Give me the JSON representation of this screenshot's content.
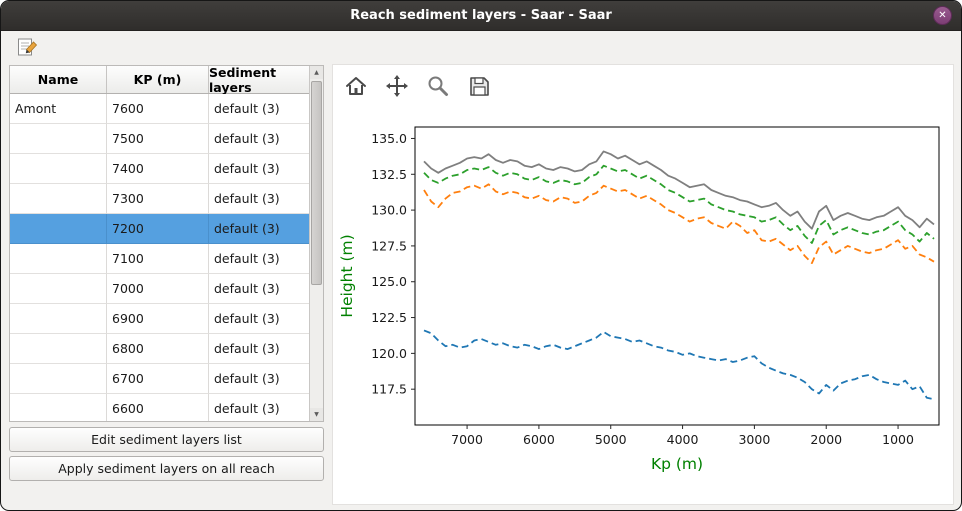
{
  "window": {
    "title": "Reach sediment layers - Saar - Saar"
  },
  "icons": {
    "close": "✕",
    "scroll_up": "▲",
    "scroll_down": "▼"
  },
  "table": {
    "columns": [
      "Name",
      "KP (m)",
      "Sediment layers"
    ],
    "selected_kp": "7200",
    "rows": [
      {
        "name": "Amont",
        "kp": "7600",
        "layers": "default (3)"
      },
      {
        "name": "",
        "kp": "7500",
        "layers": "default (3)"
      },
      {
        "name": "",
        "kp": "7400",
        "layers": "default (3)"
      },
      {
        "name": "",
        "kp": "7300",
        "layers": "default (3)"
      },
      {
        "name": "",
        "kp": "7200",
        "layers": "default (3)"
      },
      {
        "name": "",
        "kp": "7100",
        "layers": "default (3)"
      },
      {
        "name": "",
        "kp": "7000",
        "layers": "default (3)"
      },
      {
        "name": "",
        "kp": "6900",
        "layers": "default (3)"
      },
      {
        "name": "",
        "kp": "6800",
        "layers": "default (3)"
      },
      {
        "name": "",
        "kp": "6700",
        "layers": "default (3)"
      },
      {
        "name": "",
        "kp": "6600",
        "layers": "default (3)"
      }
    ]
  },
  "buttons": {
    "edit": "Edit sediment layers list",
    "apply": "Apply sediment layers on all reach"
  },
  "chart_data": {
    "type": "line",
    "title": "",
    "xlabel": "Kp (m)",
    "ylabel": "Height (m)",
    "axis_label_color": "#008000",
    "x_inverted": true,
    "xlim": [
      7725,
      430
    ],
    "ylim": [
      115.0,
      135.8
    ],
    "x_ticks": [
      7000,
      6000,
      5000,
      4000,
      3000,
      2000,
      1000
    ],
    "y_ticks": [
      117.5,
      120.0,
      122.5,
      125.0,
      127.5,
      130.0,
      132.5,
      135.0
    ],
    "x": [
      7600,
      7500,
      7400,
      7300,
      7200,
      7100,
      7000,
      6900,
      6800,
      6700,
      6600,
      6500,
      6400,
      6300,
      6200,
      6100,
      6000,
      5900,
      5800,
      5700,
      5600,
      5500,
      5400,
      5300,
      5200,
      5100,
      5000,
      4900,
      4800,
      4700,
      4600,
      4500,
      4400,
      4300,
      4200,
      4100,
      4000,
      3900,
      3800,
      3700,
      3600,
      3500,
      3400,
      3300,
      3200,
      3100,
      3000,
      2900,
      2800,
      2700,
      2600,
      2500,
      2400,
      2300,
      2200,
      2100,
      2000,
      1900,
      1800,
      1700,
      1600,
      1500,
      1400,
      1300,
      1200,
      1100,
      1000,
      900,
      800,
      700,
      600,
      500
    ],
    "series": [
      {
        "name": "gray solid line",
        "color": "#7f7f7f",
        "dash": "solid",
        "values": [
          133.4,
          132.9,
          132.6,
          132.9,
          133.1,
          133.3,
          133.6,
          133.7,
          133.6,
          133.9,
          133.5,
          133.3,
          133.5,
          133.4,
          133.1,
          133.0,
          133.2,
          132.9,
          132.8,
          133.0,
          132.9,
          132.7,
          132.8,
          133.2,
          133.4,
          134.1,
          133.9,
          133.6,
          133.8,
          133.5,
          133.2,
          133.4,
          133.1,
          132.8,
          132.4,
          132.2,
          131.9,
          131.6,
          131.7,
          131.8,
          131.4,
          131.2,
          131.0,
          130.9,
          130.7,
          130.6,
          130.4,
          130.2,
          130.3,
          130.5,
          130.0,
          129.6,
          129.9,
          129.2,
          128.7,
          129.9,
          130.3,
          129.3,
          129.6,
          129.8,
          129.6,
          129.4,
          129.3,
          129.5,
          129.6,
          129.9,
          130.2,
          129.6,
          129.3,
          128.8,
          129.4,
          129.0
        ]
      },
      {
        "name": "green dashed line",
        "color": "#2ca02c",
        "dash": "dashed",
        "values": [
          132.6,
          132.1,
          131.9,
          132.2,
          132.4,
          132.5,
          132.8,
          132.9,
          132.8,
          133.0,
          132.6,
          132.4,
          132.6,
          132.5,
          132.2,
          132.1,
          132.3,
          132.0,
          131.9,
          132.1,
          132.0,
          131.8,
          131.9,
          132.3,
          132.5,
          133.1,
          132.9,
          132.7,
          132.8,
          132.5,
          132.2,
          132.4,
          132.1,
          131.8,
          131.4,
          131.2,
          130.9,
          130.6,
          130.7,
          130.8,
          130.4,
          130.2,
          130.0,
          129.9,
          129.7,
          129.6,
          129.5,
          129.2,
          129.3,
          129.5,
          129.0,
          128.6,
          128.9,
          128.2,
          127.7,
          128.9,
          129.3,
          128.3,
          128.6,
          128.8,
          128.6,
          128.4,
          128.3,
          128.5,
          128.6,
          128.9,
          129.2,
          128.6,
          128.3,
          127.8,
          128.4,
          128.0
        ]
      },
      {
        "name": "orange dashed line",
        "color": "#ff7f0e",
        "dash": "dashed",
        "values": [
          131.4,
          130.6,
          130.2,
          130.8,
          131.2,
          131.3,
          131.6,
          131.7,
          131.5,
          131.8,
          131.3,
          131.1,
          131.3,
          131.2,
          130.9,
          130.8,
          131.0,
          130.7,
          130.6,
          130.9,
          130.8,
          130.5,
          130.6,
          131.0,
          131.2,
          131.7,
          131.5,
          131.3,
          131.4,
          131.1,
          130.8,
          131.0,
          130.7,
          130.4,
          130.0,
          129.8,
          129.5,
          129.2,
          129.4,
          129.5,
          129.1,
          128.9,
          128.7,
          129.2,
          128.9,
          128.4,
          128.6,
          127.9,
          127.8,
          128.0,
          127.6,
          127.2,
          127.5,
          126.8,
          126.3,
          127.4,
          127.8,
          126.9,
          127.2,
          127.5,
          127.3,
          127.1,
          127.0,
          127.2,
          127.3,
          127.6,
          127.9,
          127.3,
          127.5,
          126.9,
          126.7,
          126.4
        ]
      },
      {
        "name": "blue dashed line",
        "color": "#1f77b4",
        "dash": "dashed",
        "values": [
          121.6,
          121.4,
          120.9,
          120.5,
          120.6,
          120.4,
          120.5,
          120.9,
          121.0,
          120.8,
          120.6,
          120.7,
          120.5,
          120.4,
          120.6,
          120.5,
          120.3,
          120.5,
          120.6,
          120.4,
          120.3,
          120.5,
          120.7,
          120.9,
          121.1,
          121.5,
          121.2,
          121.1,
          121.0,
          120.8,
          120.9,
          120.7,
          120.5,
          120.4,
          120.2,
          120.1,
          119.9,
          120.0,
          119.8,
          119.7,
          119.6,
          119.5,
          119.6,
          119.4,
          119.5,
          119.7,
          119.8,
          119.3,
          119.0,
          118.8,
          118.6,
          118.5,
          118.3,
          118.0,
          117.5,
          117.2,
          117.8,
          117.4,
          117.9,
          118.1,
          118.2,
          118.4,
          118.5,
          118.2,
          118.0,
          117.9,
          117.8,
          118.1,
          117.5,
          117.7,
          116.9,
          116.8
        ]
      }
    ]
  }
}
